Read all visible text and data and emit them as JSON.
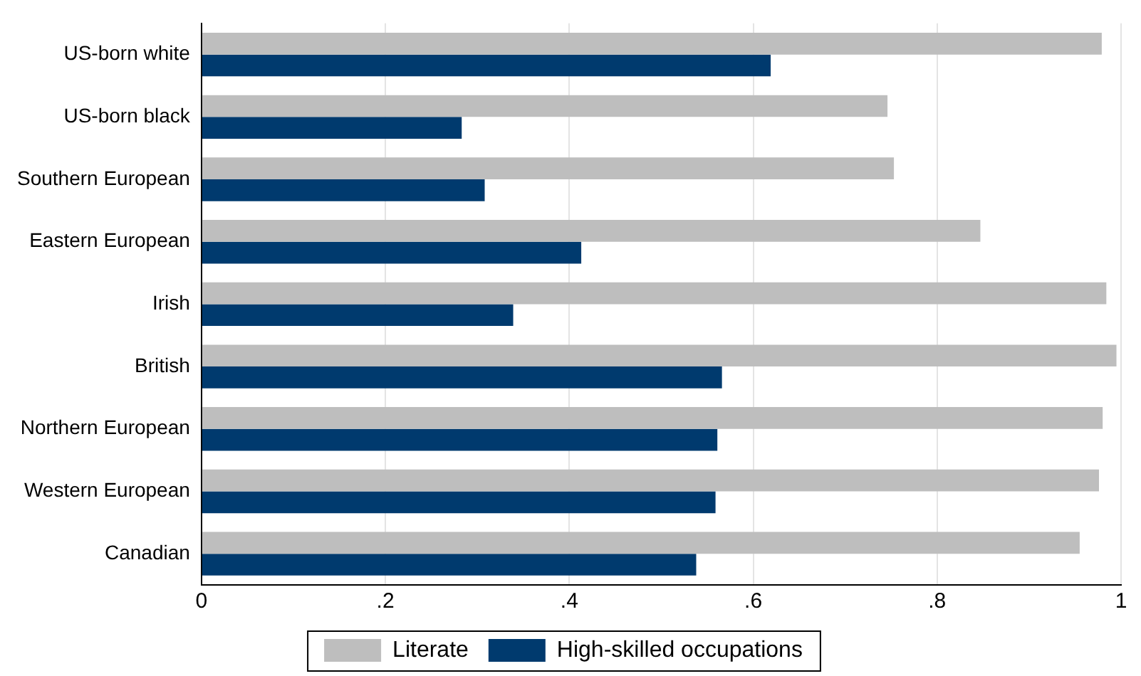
{
  "chart_data": {
    "type": "bar",
    "orientation": "horizontal",
    "categories": [
      "US-born white",
      "US-born black",
      "Southern European",
      "Eastern European",
      "Irish",
      "British",
      "Northern European",
      "Western European",
      "Canadian"
    ],
    "series": [
      {
        "name": "Literate",
        "color": "#bebebe",
        "values": [
          0.979,
          0.746,
          0.753,
          0.847,
          0.984,
          0.995,
          0.98,
          0.976,
          0.955
        ]
      },
      {
        "name": "High-skilled occupations",
        "color": "#003a6e",
        "values": [
          0.619,
          0.283,
          0.308,
          0.413,
          0.339,
          0.566,
          0.561,
          0.559,
          0.538
        ]
      }
    ],
    "xlim": [
      0,
      1
    ],
    "xticks": [
      0,
      {
        "value": 0.2,
        "label": ".2"
      },
      {
        "value": 0.4,
        "label": ".4"
      },
      {
        "value": 0.6,
        "label": ".6"
      },
      {
        "value": 0.8,
        "label": ".8"
      },
      1
    ],
    "grid": "x",
    "legend": "bottom"
  }
}
